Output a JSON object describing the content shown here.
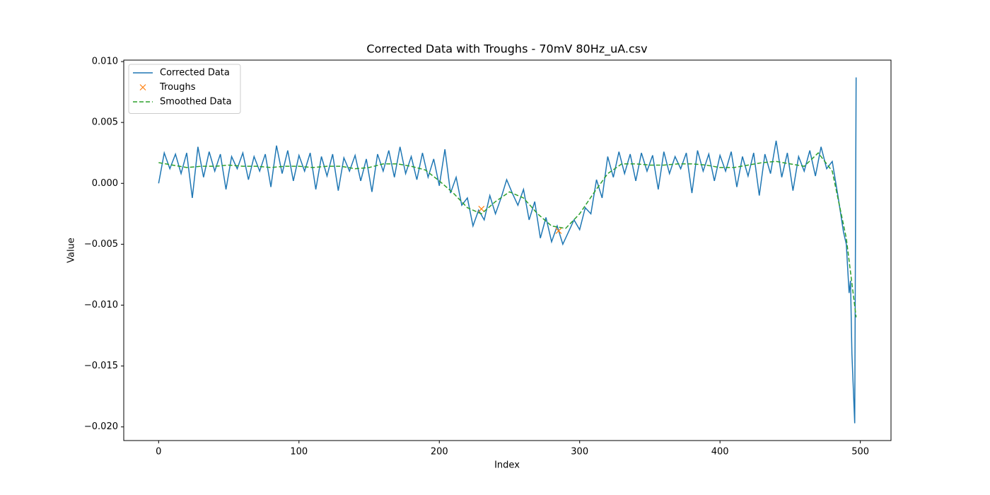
{
  "chart_data": {
    "type": "line",
    "title": "Corrected Data with Troughs - 70mV 80Hz_uA.csv",
    "xlabel": "Index",
    "ylabel": "Value",
    "xlim": [
      -24.85,
      521.85
    ],
    "ylim": [
      -0.02112,
      0.01012
    ],
    "xticks": [
      0,
      100,
      200,
      300,
      400,
      500
    ],
    "yticks": [
      {
        "value": 0.01,
        "label": "0.010"
      },
      {
        "value": 0.005,
        "label": "0.005"
      },
      {
        "value": 0,
        "label": "0.000"
      },
      {
        "value": -0.005,
        "label": "−0.005"
      },
      {
        "value": -0.01,
        "label": "−0.010"
      },
      {
        "value": -0.015,
        "label": "−0.015"
      },
      {
        "value": -0.02,
        "label": "−0.020"
      }
    ],
    "grid": false,
    "legend": "upper left",
    "series": [
      {
        "name": "Corrected Data",
        "color": "#1f77b4",
        "linestyle": "solid",
        "marker": "none",
        "x": [
          0,
          4,
          8,
          12,
          16,
          20,
          24,
          28,
          32,
          36,
          40,
          44,
          48,
          52,
          56,
          60,
          64,
          68,
          72,
          76,
          80,
          84,
          88,
          92,
          96,
          100,
          104,
          108,
          112,
          116,
          120,
          124,
          128,
          132,
          136,
          140,
          144,
          148,
          152,
          156,
          160,
          164,
          168,
          172,
          176,
          180,
          184,
          188,
          192,
          196,
          200,
          204,
          208,
          212,
          216,
          220,
          224,
          228,
          232,
          236,
          240,
          244,
          248,
          252,
          256,
          260,
          264,
          268,
          272,
          276,
          280,
          284,
          288,
          292,
          296,
          300,
          304,
          308,
          312,
          316,
          320,
          324,
          328,
          332,
          336,
          340,
          344,
          348,
          352,
          356,
          360,
          364,
          368,
          372,
          376,
          380,
          384,
          388,
          392,
          396,
          400,
          404,
          408,
          412,
          416,
          420,
          424,
          428,
          432,
          436,
          440,
          444,
          448,
          452,
          456,
          460,
          464,
          468,
          472,
          476,
          480,
          484,
          488,
          490,
          492,
          493,
          494,
          496,
          497
        ],
        "values": [
          0.0,
          0.0025,
          0.0012,
          0.0024,
          0.0008,
          0.0025,
          -0.0012,
          0.003,
          0.0005,
          0.0026,
          0.001,
          0.0024,
          -0.0005,
          0.0022,
          0.0012,
          0.0025,
          0.0003,
          0.0022,
          0.001,
          0.0024,
          -0.0003,
          0.0031,
          0.0008,
          0.0027,
          0.0002,
          0.0023,
          0.001,
          0.0025,
          -0.0005,
          0.0022,
          0.0006,
          0.0024,
          -0.0006,
          0.0021,
          0.001,
          0.0023,
          0.0002,
          0.002,
          -0.0007,
          0.0024,
          0.001,
          0.0027,
          0.0005,
          0.003,
          0.0008,
          0.0022,
          0.0003,
          0.0025,
          0.0005,
          0.002,
          -0.0002,
          0.0028,
          -0.0008,
          0.0005,
          -0.0018,
          -0.0012,
          -0.0035,
          -0.0022,
          -0.003,
          -0.001,
          -0.0025,
          -0.0012,
          0.0003,
          -0.0008,
          -0.0018,
          -0.0005,
          -0.003,
          -0.0015,
          -0.0045,
          -0.0028,
          -0.0048,
          -0.0035,
          -0.005,
          -0.004,
          -0.003,
          -0.0038,
          -0.002,
          -0.0025,
          0.0003,
          -0.0012,
          0.0022,
          0.0005,
          0.0026,
          0.0008,
          0.0024,
          0.0002,
          0.0025,
          0.001,
          0.0023,
          -0.0005,
          0.0026,
          0.0008,
          0.0022,
          0.0012,
          0.0025,
          -0.0008,
          0.0027,
          0.001,
          0.0024,
          0.0002,
          0.0023,
          0.001,
          0.0026,
          -0.0003,
          0.0022,
          0.0006,
          0.0025,
          -0.001,
          0.0024,
          0.0008,
          0.0035,
          0.0005,
          0.0025,
          -0.0006,
          0.0022,
          0.001,
          0.0027,
          0.0006,
          0.003,
          0.0012,
          0.0018,
          -0.001,
          -0.004,
          -0.005,
          -0.009,
          -0.008,
          -0.014,
          -0.0197,
          0.0087
        ]
      },
      {
        "name": "Troughs",
        "color": "#ff7f0e",
        "linestyle": "none",
        "marker": "x",
        "x": [
          230,
          285
        ],
        "values": [
          -0.0021,
          -0.0039
        ]
      },
      {
        "name": "Smoothed Data",
        "color": "#2ca02c",
        "linestyle": "dashed",
        "marker": "none",
        "x": [
          0,
          10,
          20,
          30,
          40,
          50,
          60,
          70,
          80,
          90,
          100,
          110,
          120,
          130,
          140,
          150,
          160,
          170,
          180,
          190,
          200,
          210,
          220,
          230,
          240,
          250,
          260,
          270,
          280,
          290,
          300,
          310,
          320,
          330,
          340,
          350,
          360,
          370,
          380,
          390,
          400,
          410,
          420,
          430,
          440,
          450,
          460,
          470,
          480,
          490,
          497
        ],
        "values": [
          0.0017,
          0.0015,
          0.0013,
          0.0014,
          0.0014,
          0.0015,
          0.0014,
          0.0014,
          0.0013,
          0.0014,
          0.0014,
          0.0013,
          0.0014,
          0.0014,
          0.0012,
          0.0013,
          0.0016,
          0.0016,
          0.0014,
          0.0011,
          0.0002,
          -0.0008,
          -0.002,
          -0.0025,
          -0.0015,
          -0.0007,
          -0.0012,
          -0.0025,
          -0.0035,
          -0.0037,
          -0.0025,
          -0.0008,
          0.0008,
          0.0016,
          0.0016,
          0.0015,
          0.0015,
          0.0016,
          0.0016,
          0.0015,
          0.0013,
          0.0013,
          0.0015,
          0.0017,
          0.0018,
          0.0016,
          0.0014,
          0.0025,
          0.001,
          -0.0045,
          -0.011
        ]
      }
    ]
  }
}
